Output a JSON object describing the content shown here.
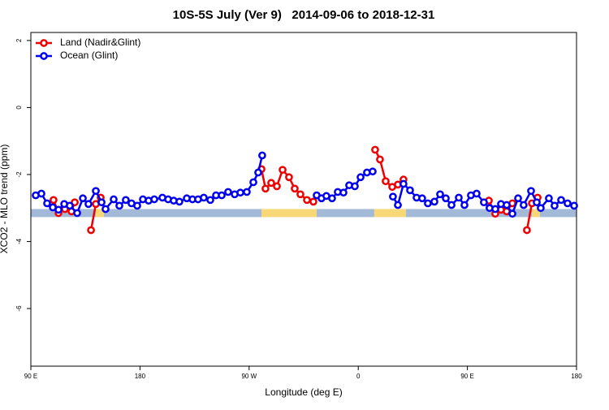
{
  "chart_data": {
    "type": "line",
    "title": "10S-5S July (Ver 9)   2014-09-06 to 2018-12-31",
    "x_label": "Longitude (deg E)",
    "y_label": "XCO2 - MLO trend (ppm)",
    "xlim": [
      90,
      540
    ],
    "ylim": [
      -7.72,
      2.24
    ],
    "xticks": [
      {
        "value": 90,
        "label": "90 E"
      },
      {
        "value": 180,
        "label": "180"
      },
      {
        "value": 270,
        "label": "90 W"
      },
      {
        "value": 360,
        "label": "0"
      },
      {
        "value": 450,
        "label": "90 E"
      },
      {
        "value": 540,
        "label": "180"
      }
    ],
    "yticks": [
      2,
      0,
      -2,
      -4,
      -6
    ],
    "legend": "top-left",
    "surface_band": {
      "ylim": [
        -3.27,
        -3.03
      ],
      "segments": [
        {
          "x": [
            90,
            143.6
          ],
          "color": "#a3b9d8"
        },
        {
          "x": [
            143.6,
            150.3
          ],
          "color": "#f8d777"
        },
        {
          "x": [
            150.3,
            280.2
          ],
          "color": "#a3b9d8"
        },
        {
          "x": [
            280.2,
            325.7
          ],
          "color": "#f8d777"
        },
        {
          "x": [
            325.7,
            373.2
          ],
          "color": "#a3b9d8"
        },
        {
          "x": [
            373.2,
            399.4
          ],
          "color": "#f8d777"
        },
        {
          "x": [
            399.4,
            503.2
          ],
          "color": "#a3b9d8"
        },
        {
          "x": [
            503.2,
            509.8
          ],
          "color": "#f8d777"
        },
        {
          "x": [
            509.8,
            540
          ],
          "color": "#a3b9d8"
        }
      ]
    },
    "series": [
      {
        "name": "Land (Nadir&Glint)",
        "color": "#ee0000",
        "x": [
          108.7,
          112.8,
          118.1,
          123.5,
          126.2,
          null,
          139.6,
          143.6,
          147.6,
          null,
          280.2,
          283.5,
          288.2,
          292.9,
          297.6,
          302.9,
          307.6,
          312.3,
          317.7,
          323.0,
          null,
          373.9,
          377.9,
          382.6,
          388.0,
          392.7,
          397.3,
          null,
          467.7,
          473.0,
          477.7,
          482.4,
          487.1,
          null,
          499.1,
          503.2,
          507.9
        ],
        "values": [
          -2.76,
          -3.15,
          -3.03,
          -3.1,
          -2.83,
          null,
          -3.66,
          -2.88,
          -2.69,
          null,
          -1.84,
          -2.42,
          -2.25,
          -2.35,
          -1.86,
          -2.08,
          -2.42,
          -2.59,
          -2.76,
          -2.81,
          null,
          -1.26,
          -1.55,
          -2.2,
          -2.37,
          -2.3,
          -2.15,
          null,
          -2.78,
          -3.17,
          -3.05,
          -3.1,
          -2.86,
          null,
          -3.66,
          -2.86,
          -2.69
        ]
      },
      {
        "name": "Ocean (Glint)",
        "color": "#0000ee",
        "x": [
          94.0,
          98.7,
          103.4,
          108.1,
          112.8,
          117.5,
          122.1,
          128.2,
          132.9,
          137.5,
          143.6,
          148.3,
          151.6,
          158.3,
          163.0,
          168.3,
          173.0,
          177.7,
          182.4,
          187.1,
          191.8,
          198.5,
          203.2,
          207.8,
          212.5,
          218.6,
          223.3,
          227.9,
          232.6,
          238.0,
          242.7,
          247.4,
          252.7,
          258.1,
          262.8,
          268.1,
          273.5,
          277.5,
          280.8,
          null,
          325.7,
          329.7,
          333.7,
          338.4,
          343.1,
          347.8,
          352.5,
          357.2,
          361.9,
          367.2,
          371.9,
          null,
          388.6,
          392.7,
          397.3,
          402.7,
          408.1,
          412.7,
          417.4,
          422.8,
          427.5,
          432.2,
          436.9,
          442.9,
          447.6,
          452.9,
          457.6,
          463.6,
          468.3,
          473.0,
          477.7,
          482.4,
          487.1,
          491.8,
          496.4,
          502.5,
          507.2,
          510.5,
          517.2,
          521.9,
          527.3,
          532.6,
          538.0
        ],
        "values": [
          -2.62,
          -2.57,
          -2.86,
          -2.98,
          -3.05,
          -2.88,
          -2.93,
          -3.15,
          -2.71,
          -2.88,
          -2.49,
          -2.83,
          -3.03,
          -2.74,
          -2.93,
          -2.76,
          -2.86,
          -2.93,
          -2.74,
          -2.78,
          -2.74,
          -2.69,
          -2.74,
          -2.78,
          -2.81,
          -2.71,
          -2.74,
          -2.74,
          -2.69,
          -2.76,
          -2.62,
          -2.62,
          -2.52,
          -2.59,
          -2.54,
          -2.52,
          -2.23,
          -1.94,
          -1.43,
          null,
          -2.62,
          -2.71,
          -2.64,
          -2.71,
          -2.52,
          -2.54,
          -2.32,
          -2.35,
          -2.08,
          -1.94,
          -1.91,
          null,
          -2.66,
          -2.91,
          -2.28,
          -2.47,
          -2.69,
          -2.71,
          -2.86,
          -2.81,
          -2.59,
          -2.71,
          -2.91,
          -2.69,
          -2.91,
          -2.62,
          -2.57,
          -2.83,
          -3.0,
          -3.03,
          -2.88,
          -2.91,
          -3.17,
          -2.71,
          -2.91,
          -2.49,
          -2.83,
          -3.0,
          -2.71,
          -2.93,
          -2.76,
          -2.86,
          -2.93
        ]
      }
    ]
  }
}
